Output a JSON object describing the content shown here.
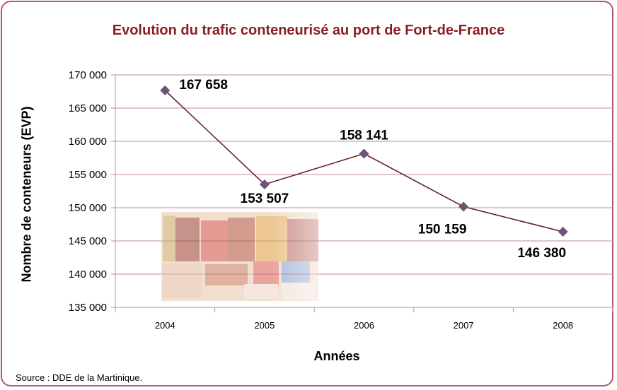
{
  "chart_data": {
    "type": "line",
    "title": "Evolution du trafic conteneurisé au port de Fort-de-France",
    "xlabel": "Années",
    "ylabel": "Nombre de conteneurs (EVP)",
    "categories": [
      "2004",
      "2005",
      "2006",
      "2007",
      "2008"
    ],
    "values": [
      167658,
      153507,
      158141,
      150159,
      146380
    ],
    "value_labels": [
      "167 658",
      "153 507",
      "158 141",
      "150 159",
      "146 380"
    ],
    "ylim": [
      135000,
      170000
    ],
    "yticks": [
      135000,
      140000,
      145000,
      150000,
      155000,
      160000,
      165000,
      170000
    ],
    "ytick_labels": [
      "135 000",
      "140 000",
      "145 000",
      "150 000",
      "155 000",
      "160 000",
      "165 000",
      "170 000"
    ],
    "grid": true,
    "line_color": "#6b2230",
    "marker_color": "#6e5378",
    "grid_color": "#c9a3ab"
  },
  "source": "Source : DDE de la Martinique."
}
